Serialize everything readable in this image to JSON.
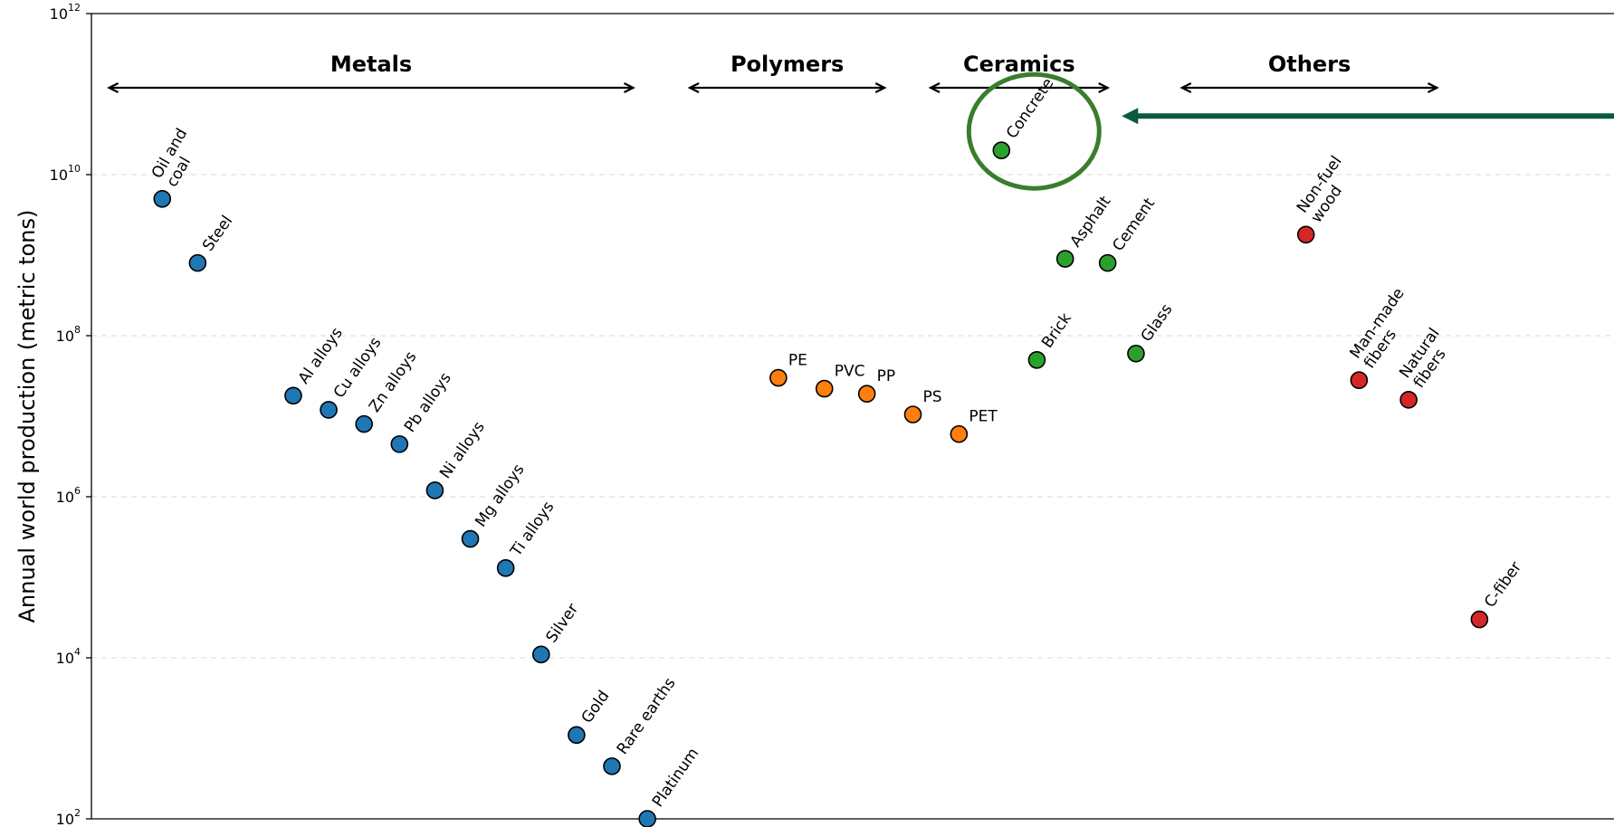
{
  "chart_data": {
    "type": "scatter",
    "title": "",
    "xlabel": "",
    "ylabel": "Annual world production (metric tons)",
    "y_scale": "log",
    "ylim": [
      100,
      1000000000000
    ],
    "y_ticks": [
      {
        "base": "10",
        "exp": "2",
        "value": 100
      },
      {
        "base": "10",
        "exp": "4",
        "value": 10000
      },
      {
        "base": "10",
        "exp": "6",
        "value": 1000000
      },
      {
        "base": "10",
        "exp": "8",
        "value": 100000000
      },
      {
        "base": "10",
        "exp": "10",
        "value": 10000000000
      },
      {
        "base": "10",
        "exp": "12",
        "value": 1000000000000
      }
    ],
    "grid": "horizontal dashed",
    "colors": {
      "Metals": "#1f77b4",
      "Polymers": "#ff7f0e",
      "Ceramics": "#2ca02c",
      "Others": "#d62728",
      "highlight": "#3a7d2c",
      "arrow": "#0b5a3c"
    },
    "groups": [
      {
        "name": "Metals",
        "span": [
          -0.5,
          14.3
        ]
      },
      {
        "name": "Polymers",
        "span": [
          15.9,
          21.4
        ]
      },
      {
        "name": "Ceramics",
        "span": [
          22.7,
          27.7
        ]
      },
      {
        "name": "Others",
        "span": [
          29.8,
          37.0
        ]
      }
    ],
    "points": [
      {
        "x": 1,
        "value": 5000000000,
        "group": "Metals",
        "label_lines": [
          "Oil and",
          "coal"
        ],
        "rot": -60
      },
      {
        "x": 2,
        "value": 800000000,
        "group": "Metals",
        "label_lines": [
          "Steel"
        ],
        "rot": -55
      },
      {
        "x": 4.7,
        "value": 18000000,
        "group": "Metals",
        "label_lines": [
          "Al alloys"
        ],
        "rot": -55
      },
      {
        "x": 5.7,
        "value": 12000000,
        "group": "Metals",
        "label_lines": [
          "Cu alloys"
        ],
        "rot": -55
      },
      {
        "x": 6.7,
        "value": 8000000,
        "group": "Metals",
        "label_lines": [
          "Zn alloys"
        ],
        "rot": -55
      },
      {
        "x": 7.7,
        "value": 4500000,
        "group": "Metals",
        "label_lines": [
          "Pb alloys"
        ],
        "rot": -55
      },
      {
        "x": 8.7,
        "value": 1200000,
        "group": "Metals",
        "label_lines": [
          "Ni alloys"
        ],
        "rot": -55
      },
      {
        "x": 9.7,
        "value": 300000,
        "group": "Metals",
        "label_lines": [
          "Mg alloys"
        ],
        "rot": -55
      },
      {
        "x": 10.7,
        "value": 130000,
        "group": "Metals",
        "label_lines": [
          "Ti alloys"
        ],
        "rot": -55
      },
      {
        "x": 11.7,
        "value": 11000,
        "group": "Metals",
        "label_lines": [
          "Silver"
        ],
        "rot": -55
      },
      {
        "x": 12.7,
        "value": 1100,
        "group": "Metals",
        "label_lines": [
          "Gold"
        ],
        "rot": -55
      },
      {
        "x": 13.7,
        "value": 450,
        "group": "Metals",
        "label_lines": [
          "Rare earths"
        ],
        "rot": -55
      },
      {
        "x": 14.7,
        "value": 100,
        "group": "Metals",
        "label_lines": [
          "Platinum"
        ],
        "rot": -55
      },
      {
        "x": 18.4,
        "value": 30000000,
        "group": "Polymers",
        "label_lines": [
          "PE"
        ],
        "rot": 0
      },
      {
        "x": 19.7,
        "value": 22000000,
        "group": "Polymers",
        "label_lines": [
          "PVC"
        ],
        "rot": 0
      },
      {
        "x": 20.9,
        "value": 19000000,
        "group": "Polymers",
        "label_lines": [
          "PP"
        ],
        "rot": 0
      },
      {
        "x": 22.2,
        "value": 10500000,
        "group": "Polymers",
        "label_lines": [
          "PS"
        ],
        "rot": 0
      },
      {
        "x": 23.5,
        "value": 6000000,
        "group": "Polymers",
        "label_lines": [
          "PET"
        ],
        "rot": 0
      },
      {
        "x": 24.7,
        "value": 20000000000,
        "group": "Ceramics",
        "label_lines": [
          "Concrete"
        ],
        "rot": -55
      },
      {
        "x": 26.5,
        "value": 900000000,
        "group": "Ceramics",
        "label_lines": [
          "Asphalt"
        ],
        "rot": -55
      },
      {
        "x": 27.7,
        "value": 800000000,
        "group": "Ceramics",
        "label_lines": [
          "Cement"
        ],
        "rot": -55
      },
      {
        "x": 25.7,
        "value": 50000000,
        "group": "Ceramics",
        "label_lines": [
          "Brick"
        ],
        "rot": -55
      },
      {
        "x": 28.5,
        "value": 60000000,
        "group": "Ceramics",
        "label_lines": [
          "Glass"
        ],
        "rot": -55
      },
      {
        "x": 33.3,
        "value": 1800000000,
        "group": "Others",
        "label_lines": [
          "Non-fuel",
          "wood"
        ],
        "rot": -55
      },
      {
        "x": 34.8,
        "value": 28000000,
        "group": "Others",
        "label_lines": [
          "Man-made",
          "fibers"
        ],
        "rot": -55
      },
      {
        "x": 36.2,
        "value": 16000000,
        "group": "Others",
        "label_lines": [
          "Natural",
          "fibers"
        ],
        "rot": -55
      },
      {
        "x": 38.2,
        "value": 30000,
        "group": "Others",
        "label_lines": [
          "C-fiber"
        ],
        "rot": -55
      }
    ],
    "annotations": [
      {
        "type": "circle",
        "target": "Concrete"
      },
      {
        "type": "arrow",
        "target": "Concrete",
        "from": "right"
      }
    ],
    "xlim": [
      -1,
      42
    ]
  }
}
